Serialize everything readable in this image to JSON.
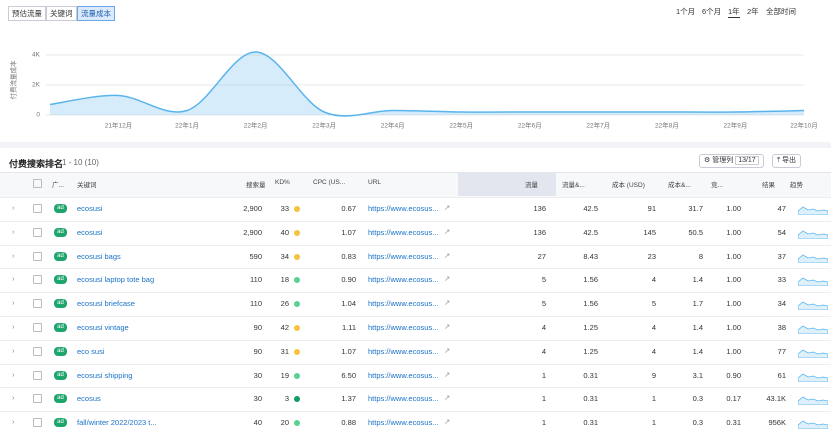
{
  "tabs": [
    "预估流量",
    "关键词",
    "流量成本"
  ],
  "active_tab": 2,
  "ranges": [
    "1个月",
    "6个月",
    "1年",
    "2年",
    "全部时间"
  ],
  "active_range": 2,
  "chart_data": {
    "type": "area",
    "y_label": "付费流量成本",
    "color": "#5ab4ec",
    "categories": [
      null,
      "21年12月",
      "22年1月",
      "22年2月",
      "22年3月",
      "22年4月",
      "22年5月",
      "22年6月",
      "22年7月",
      "22年8月",
      "22年9月",
      "22年10月"
    ],
    "values": [
      700,
      1300,
      300,
      4200,
      200,
      300,
      200,
      200,
      200,
      200,
      200,
      300
    ],
    "ylim": [
      0,
      4700
    ],
    "yticks": [
      0,
      {
        "value": 2000,
        "label": "2K"
      },
      {
        "value": 4000,
        "label": "4K"
      }
    ],
    "grid": true
  },
  "table": {
    "title": "付费搜索排名",
    "range": "1 - 10 (10)",
    "manage": "管理列",
    "column_count": "13/17",
    "export": "导出",
    "badge": "ad",
    "headers": [
      "广...",
      "关键词",
      "搜索量",
      "KD%",
      "CPC (US...",
      "URL",
      "流量",
      "流量&...",
      "成本 (USD)",
      "成本&...",
      "竞...",
      "结果",
      "趋势"
    ],
    "rows": [
      [
        "ecosusi",
        "2,900",
        "33",
        "#f5c33b",
        "0.67",
        "https://www.ecosus...",
        "136",
        "42.5",
        "91",
        "31.7",
        "1.00",
        "47"
      ],
      [
        "ecosusi",
        "2,900",
        "40",
        "#f5c33b",
        "1.07",
        "https://www.ecosus...",
        "136",
        "42.5",
        "145",
        "50.5",
        "1.00",
        "54"
      ],
      [
        "ecosusi bags",
        "590",
        "34",
        "#f5c33b",
        "0.83",
        "https://www.ecosus...",
        "27",
        "8.43",
        "23",
        "8",
        "1.00",
        "37"
      ],
      [
        "ecosusi laptop tote bag",
        "110",
        "18",
        "#59d28e",
        "0.90",
        "https://www.ecosus...",
        "5",
        "1.56",
        "4",
        "1.4",
        "1.00",
        "33"
      ],
      [
        "ecosusi briefcase",
        "110",
        "26",
        "#59d28e",
        "1.04",
        "https://www.ecosus...",
        "5",
        "1.56",
        "5",
        "1.7",
        "1.00",
        "34"
      ],
      [
        "ecosusi vintage",
        "90",
        "42",
        "#f5c33b",
        "1.11",
        "https://www.ecosus...",
        "4",
        "1.25",
        "4",
        "1.4",
        "1.00",
        "38"
      ],
      [
        "eco susi",
        "90",
        "31",
        "#f5c33b",
        "1.07",
        "https://www.ecosus...",
        "4",
        "1.25",
        "4",
        "1.4",
        "1.00",
        "77"
      ],
      [
        "ecosusi shipping",
        "30",
        "19",
        "#59d28e",
        "6.50",
        "https://www.ecosus...",
        "1",
        "0.31",
        "9",
        "3.1",
        "0.90",
        "61"
      ],
      [
        "ecosus",
        "30",
        "3",
        "#0e9c63",
        "1.37",
        "https://www.ecosus...",
        "1",
        "0.31",
        "1",
        "0.3",
        "0.17",
        "43.1K"
      ],
      [
        "fall/winter 2022/2023 t...",
        "40",
        "20",
        "#59d28e",
        "0.88",
        "https://www.ecosus...",
        "1",
        "0.31",
        "1",
        "0.3",
        "0.31",
        "956K"
      ]
    ]
  }
}
